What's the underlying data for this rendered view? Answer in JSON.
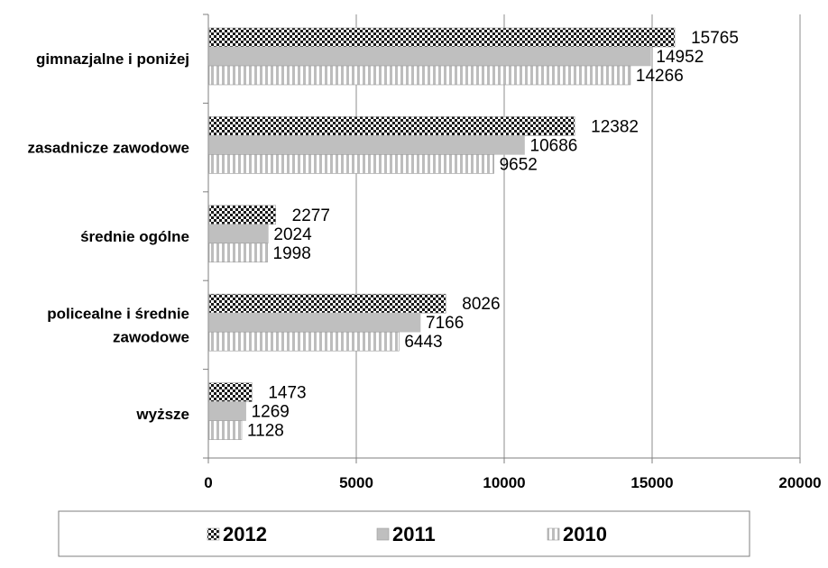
{
  "chart_data": {
    "type": "bar",
    "orientation": "horizontal",
    "categories": [
      "gimnazjalne i poniżej",
      "zasadnicze zawodowe",
      "średnie ogólne",
      "policealne i średnie zawodowe",
      "wyższe"
    ],
    "series": [
      {
        "name": "2012",
        "values": [
          15765,
          12382,
          2277,
          8026,
          1473
        ],
        "pattern": "checker"
      },
      {
        "name": "2011",
        "values": [
          14952,
          10686,
          2024,
          7166,
          1269
        ],
        "pattern": "solid"
      },
      {
        "name": "2010",
        "values": [
          14266,
          9652,
          1998,
          6443,
          1128
        ],
        "pattern": "vertical-stripes"
      }
    ],
    "xlim": [
      0,
      20000
    ],
    "xticks": [
      0,
      5000,
      10000,
      15000,
      20000
    ],
    "grid": true,
    "legend_position": "bottom",
    "title": "",
    "xlabel": "",
    "ylabel": ""
  },
  "colors": {
    "checker_dark": "#1a1a1a",
    "solid_gray": "#bfbfbf",
    "stripe_gray": "#bdbdbd",
    "grid": "#8c8c8c",
    "axis": "#7f7f7f"
  }
}
